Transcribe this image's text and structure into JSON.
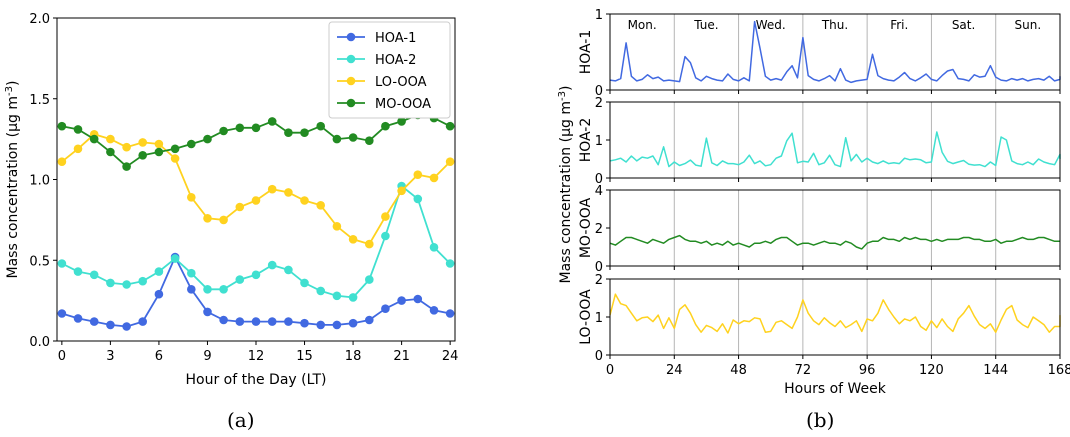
{
  "panels": {
    "a_label": "(a)",
    "b_label": "(b)"
  },
  "chart_data": [
    {
      "type": "line",
      "panel": "(a)",
      "xlabel": "Hour of the Day (LT)",
      "ylabel": "Mass concentration (μg m⁻³)",
      "xlim": [
        -0.3,
        24.3
      ],
      "ylim": [
        0.0,
        2.0
      ],
      "xticks": [
        0,
        3,
        6,
        9,
        12,
        15,
        18,
        21,
        24
      ],
      "yticks": [
        0.0,
        0.5,
        1.0,
        1.5,
        2.0
      ],
      "ytick_labels": [
        "0.0",
        "0.5",
        "1.0",
        "1.5",
        "2.0"
      ],
      "grid": false,
      "legend_position": "top-right",
      "x": [
        0,
        1,
        2,
        3,
        4,
        5,
        6,
        7,
        8,
        9,
        10,
        11,
        12,
        13,
        14,
        15,
        16,
        17,
        18,
        19,
        20,
        21,
        22,
        23,
        24
      ],
      "series": [
        {
          "name": "HOA-1",
          "color": "#4169e1",
          "values": [
            0.17,
            0.14,
            0.12,
            0.1,
            0.09,
            0.12,
            0.29,
            0.52,
            0.32,
            0.18,
            0.13,
            0.12,
            0.12,
            0.12,
            0.12,
            0.11,
            0.1,
            0.1,
            0.11,
            0.13,
            0.2,
            0.25,
            0.26,
            0.19,
            0.17
          ]
        },
        {
          "name": "HOA-2",
          "color": "#40e0d0",
          "values": [
            0.48,
            0.43,
            0.41,
            0.36,
            0.35,
            0.37,
            0.43,
            0.51,
            0.42,
            0.32,
            0.32,
            0.38,
            0.41,
            0.47,
            0.44,
            0.36,
            0.31,
            0.28,
            0.27,
            0.38,
            0.65,
            0.96,
            0.88,
            0.58,
            0.48
          ]
        },
        {
          "name": "LO-OOA",
          "color": "#ffd21f",
          "values": [
            1.11,
            1.19,
            1.28,
            1.25,
            1.2,
            1.23,
            1.22,
            1.13,
            0.89,
            0.76,
            0.75,
            0.83,
            0.87,
            0.94,
            0.92,
            0.87,
            0.84,
            0.71,
            0.63,
            0.6,
            0.77,
            0.93,
            1.03,
            1.01,
            1.11
          ]
        },
        {
          "name": "MO-OOA",
          "color": "#228b22",
          "values": [
            1.33,
            1.31,
            1.25,
            1.17,
            1.08,
            1.15,
            1.17,
            1.19,
            1.22,
            1.25,
            1.3,
            1.32,
            1.32,
            1.36,
            1.29,
            1.29,
            1.33,
            1.25,
            1.26,
            1.24,
            1.33,
            1.36,
            1.4,
            1.38,
            1.33
          ]
        }
      ]
    },
    {
      "type": "line",
      "panel": "(b)",
      "xlabel": "Hours of Week",
      "ylabel": "Mass concentration (μg m⁻³)",
      "xlim": [
        0,
        168
      ],
      "xticks": [
        0,
        24,
        48,
        72,
        96,
        120,
        144,
        168
      ],
      "day_boundaries": [
        24,
        48,
        72,
        96,
        120,
        144
      ],
      "day_labels": [
        "Mon.",
        "Tue.",
        "Wed.",
        "Thu.",
        "Fri.",
        "Sat.",
        "Sun."
      ],
      "grid": false,
      "sample_step_hours": 2,
      "subplots": [
        {
          "name": "HOA-1",
          "color": "#4169e1",
          "ylim": [
            0,
            1
          ],
          "yticks": [
            0,
            1
          ],
          "values": [
            0.13,
            0.12,
            0.15,
            0.62,
            0.18,
            0.12,
            0.14,
            0.2,
            0.15,
            0.17,
            0.12,
            0.13,
            0.12,
            0.11,
            0.44,
            0.36,
            0.16,
            0.12,
            0.18,
            0.15,
            0.13,
            0.12,
            0.21,
            0.14,
            0.12,
            0.16,
            0.12,
            0.9,
            0.55,
            0.18,
            0.13,
            0.15,
            0.13,
            0.24,
            0.32,
            0.16,
            0.69,
            0.19,
            0.14,
            0.12,
            0.15,
            0.19,
            0.12,
            0.28,
            0.13,
            0.1,
            0.12,
            0.13,
            0.14,
            0.47,
            0.19,
            0.15,
            0.13,
            0.12,
            0.17,
            0.23,
            0.15,
            0.12,
            0.16,
            0.21,
            0.14,
            0.12,
            0.19,
            0.25,
            0.27,
            0.15,
            0.14,
            0.12,
            0.2,
            0.17,
            0.18,
            0.32,
            0.17,
            0.13,
            0.12,
            0.15,
            0.13,
            0.15,
            0.12,
            0.14,
            0.15,
            0.13,
            0.18,
            0.12,
            0.14,
            0.18
          ]
        },
        {
          "name": "HOA-2",
          "color": "#40e0d0",
          "ylim": [
            0,
            2
          ],
          "yticks": [
            0,
            1,
            2
          ],
          "values": [
            0.45,
            0.48,
            0.52,
            0.42,
            0.58,
            0.45,
            0.55,
            0.52,
            0.58,
            0.35,
            0.82,
            0.3,
            0.42,
            0.33,
            0.38,
            0.47,
            0.34,
            0.31,
            1.05,
            0.4,
            0.33,
            0.45,
            0.38,
            0.38,
            0.35,
            0.42,
            0.6,
            0.38,
            0.45,
            0.32,
            0.35,
            0.52,
            0.58,
            0.98,
            1.18,
            0.4,
            0.44,
            0.42,
            0.65,
            0.35,
            0.4,
            0.6,
            0.35,
            0.3,
            1.06,
            0.45,
            0.62,
            0.42,
            0.52,
            0.42,
            0.38,
            0.45,
            0.38,
            0.4,
            0.38,
            0.52,
            0.48,
            0.5,
            0.48,
            0.4,
            0.42,
            1.21,
            0.68,
            0.44,
            0.38,
            0.42,
            0.46,
            0.36,
            0.34,
            0.35,
            0.3,
            0.42,
            0.33,
            1.08,
            1.0,
            0.45,
            0.38,
            0.35,
            0.42,
            0.35,
            0.5,
            0.42,
            0.38,
            0.35,
            0.62,
            0.5
          ]
        },
        {
          "name": "MO-OOA",
          "color": "#228b22",
          "ylim": [
            0,
            4
          ],
          "yticks": [
            0,
            2,
            4
          ],
          "values": [
            1.2,
            1.1,
            1.3,
            1.5,
            1.5,
            1.4,
            1.3,
            1.2,
            1.4,
            1.3,
            1.2,
            1.4,
            1.5,
            1.6,
            1.4,
            1.3,
            1.3,
            1.2,
            1.3,
            1.1,
            1.2,
            1.1,
            1.3,
            1.1,
            1.2,
            1.1,
            1.0,
            1.2,
            1.2,
            1.3,
            1.2,
            1.4,
            1.5,
            1.5,
            1.3,
            1.1,
            1.2,
            1.2,
            1.1,
            1.2,
            1.3,
            1.2,
            1.2,
            1.1,
            1.3,
            1.2,
            1.0,
            0.9,
            1.2,
            1.3,
            1.3,
            1.5,
            1.4,
            1.4,
            1.3,
            1.5,
            1.4,
            1.5,
            1.4,
            1.4,
            1.3,
            1.4,
            1.3,
            1.4,
            1.4,
            1.4,
            1.5,
            1.5,
            1.4,
            1.4,
            1.3,
            1.3,
            1.4,
            1.2,
            1.3,
            1.3,
            1.4,
            1.5,
            1.4,
            1.4,
            1.5,
            1.5,
            1.4,
            1.3,
            1.3,
            1.3
          ]
        },
        {
          "name": "LO-OOA",
          "color": "#ffd21f",
          "ylim": [
            0,
            2
          ],
          "yticks": [
            0,
            1,
            2
          ],
          "values": [
            1.05,
            1.6,
            1.35,
            1.3,
            1.1,
            0.9,
            0.98,
            1.0,
            0.88,
            1.05,
            0.7,
            0.98,
            0.7,
            1.2,
            1.32,
            1.1,
            0.8,
            0.6,
            0.78,
            0.72,
            0.62,
            0.82,
            0.58,
            0.92,
            0.82,
            0.9,
            0.88,
            0.98,
            0.95,
            0.6,
            0.62,
            0.86,
            0.9,
            0.8,
            0.7,
            1.0,
            1.45,
            1.1,
            0.9,
            0.8,
            0.98,
            0.85,
            0.75,
            0.9,
            0.72,
            0.8,
            0.9,
            0.62,
            0.95,
            0.9,
            1.1,
            1.45,
            1.2,
            1.0,
            0.82,
            0.95,
            0.9,
            1.0,
            0.75,
            0.65,
            0.9,
            0.72,
            0.95,
            0.75,
            0.62,
            0.95,
            1.1,
            1.3,
            1.02,
            0.8,
            0.7,
            0.82,
            0.6,
            0.92,
            1.2,
            1.3,
            0.92,
            0.8,
            0.72,
            1.0,
            0.9,
            0.8,
            0.6,
            0.75,
            0.75,
            1.05
          ]
        }
      ]
    }
  ]
}
